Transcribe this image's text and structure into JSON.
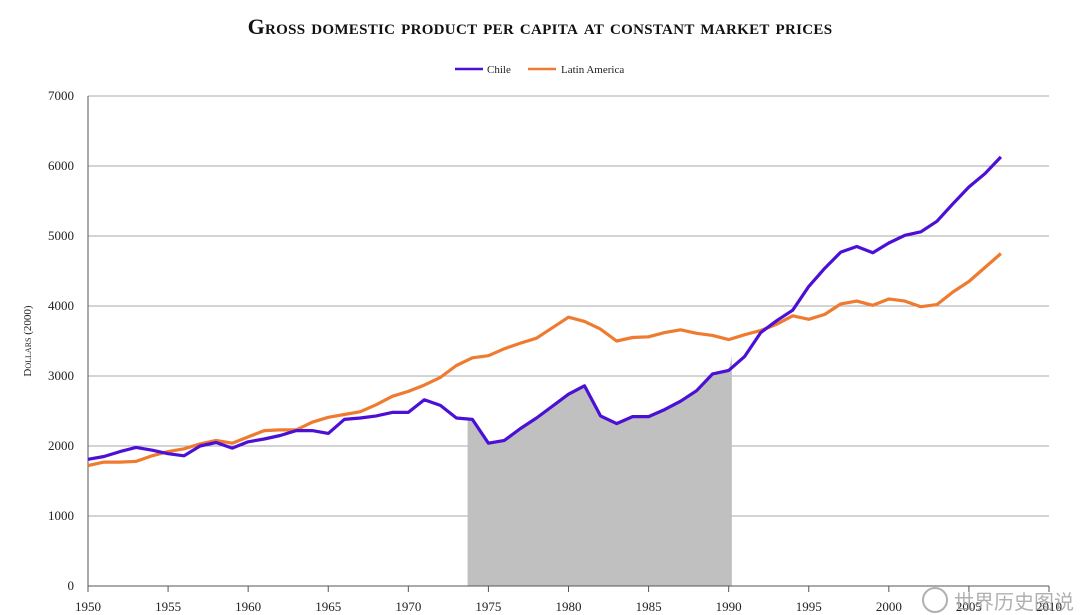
{
  "chart_data": {
    "type": "line",
    "title": "Gross domestic product per capita at constant market prices",
    "ylabel": "Dollars (2000)",
    "xlabel": "",
    "xlim": [
      1950,
      2010
    ],
    "ylim": [
      0,
      7000
    ],
    "x_ticks": [
      "1950",
      "1955",
      "1960",
      "1965",
      "1970",
      "1975",
      "1980",
      "1985",
      "1990",
      "1995",
      "2000",
      "2005",
      "2010"
    ],
    "y_ticks": [
      "0",
      "1000",
      "2000",
      "3000",
      "4000",
      "5000",
      "6000",
      "7000"
    ],
    "grid": "horizontal",
    "legend_position": "top-center",
    "shaded_region": {
      "x_start": 1973.7,
      "x_end": 1990.2,
      "color": "#c0c0c0"
    },
    "x": [
      1950,
      1951,
      1952,
      1953,
      1954,
      1955,
      1956,
      1957,
      1958,
      1959,
      1960,
      1961,
      1962,
      1963,
      1964,
      1965,
      1966,
      1967,
      1968,
      1969,
      1970,
      1971,
      1972,
      1973,
      1974,
      1975,
      1976,
      1977,
      1978,
      1979,
      1980,
      1981,
      1982,
      1983,
      1984,
      1985,
      1986,
      1987,
      1988,
      1989,
      1990,
      1991,
      1992,
      1993,
      1994,
      1995,
      1996,
      1997,
      1998,
      1999,
      2000,
      2001,
      2002,
      2003,
      2004,
      2005,
      2006,
      2007
    ],
    "series": [
      {
        "name": "Chile",
        "color": "#4b0fd6",
        "values": [
          1810,
          1850,
          1920,
          1980,
          1940,
          1890,
          1860,
          2000,
          2050,
          1970,
          2060,
          2100,
          2150,
          2220,
          2220,
          2180,
          2380,
          2400,
          2430,
          2480,
          2480,
          2660,
          2580,
          2400,
          2380,
          2040,
          2080,
          2250,
          2400,
          2570,
          2740,
          2860,
          2430,
          2320,
          2420,
          2420,
          2520,
          2640,
          2790,
          3030,
          3080,
          3280,
          3620,
          3790,
          3940,
          4280,
          4540,
          4770,
          4850,
          4760,
          4900,
          5010,
          5060,
          5210,
          5460,
          5700,
          5890,
          6130
        ]
      },
      {
        "name": "Latin America",
        "color": "#ee7b30",
        "values": [
          1720,
          1770,
          1770,
          1780,
          1860,
          1920,
          1960,
          2030,
          2080,
          2040,
          2130,
          2220,
          2230,
          2230,
          2340,
          2410,
          2450,
          2490,
          2590,
          2710,
          2780,
          2870,
          2980,
          3150,
          3260,
          3290,
          3390,
          3470,
          3540,
          3690,
          3840,
          3780,
          3670,
          3500,
          3550,
          3560,
          3620,
          3660,
          3610,
          3580,
          3520,
          3590,
          3650,
          3740,
          3860,
          3810,
          3880,
          4030,
          4070,
          4010,
          4100,
          4070,
          3990,
          4020,
          4200,
          4350,
          4550,
          4750
        ]
      }
    ]
  },
  "watermark_text": "世界历史图说"
}
